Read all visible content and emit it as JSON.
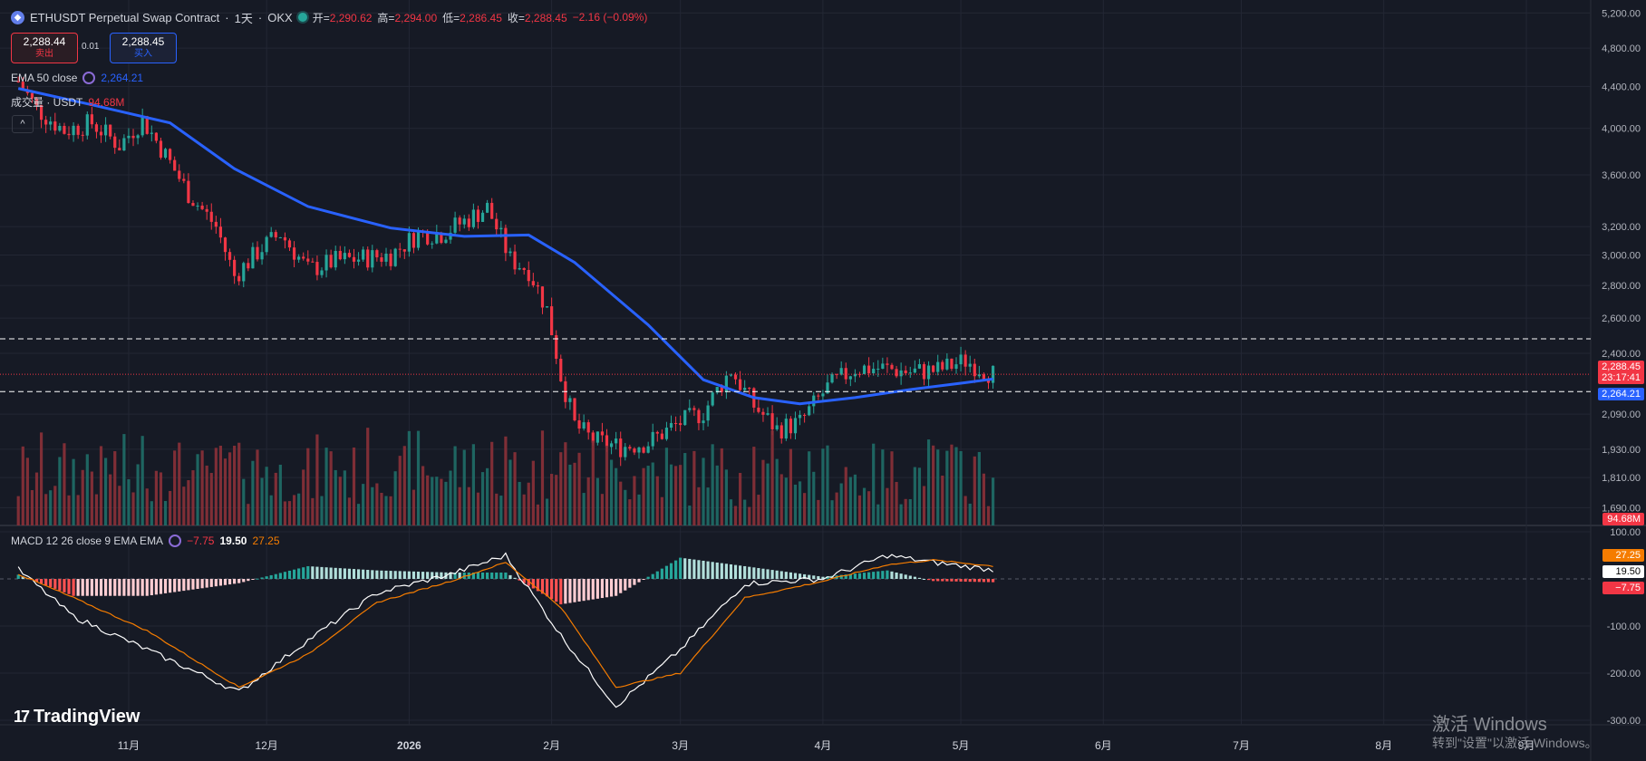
{
  "header": {
    "symbol": "ETHUSDT Perpetual Swap Contract",
    "interval": "1天",
    "exchange": "OKX",
    "open_label": "开=",
    "open": "2,290.62",
    "high_label": "高=",
    "high": "2,294.00",
    "low_label": "低=",
    "low": "2,286.45",
    "close_label": "收=",
    "close": "2,288.45",
    "change": "−2.16 (−0.09%)"
  },
  "trade": {
    "sell_price": "2,288.44",
    "sell_label": "卖出",
    "spread": "0.01",
    "buy_price": "2,288.45",
    "buy_label": "买入"
  },
  "legend": {
    "ema_label": "EMA 50 close",
    "ema_value": "2,264.21",
    "volume_label": "成交量 · USDT",
    "volume_value": "94.68M",
    "macd_label": "MACD 12 26 close 9 EMA EMA",
    "macd_hist": "−7.75",
    "macd_line": "19.50",
    "macd_signal": "27.25"
  },
  "price_tags": {
    "last": "2,288.45",
    "countdown": "23:17:41",
    "ema": "2,264.21",
    "volume": "94.68M",
    "macd_signal": "27.25",
    "macd_line": "19.50",
    "macd_hist": "−7.75"
  },
  "brand": {
    "logo": "TradingView"
  },
  "watermark": {
    "line1": "激活 Windows",
    "line2": "转到\"设置\"以激活 Windows。"
  },
  "colors": {
    "up": "#26a69a",
    "down": "#f23645",
    "ema": "#2962ff",
    "macd": "#ffffff",
    "signal": "#f57c00",
    "background": "#161a25"
  },
  "chart_data": [
    {
      "type": "candlestick",
      "title": "ETHUSDT Perpetual Swap Contract · 1天 · OKX",
      "x_ticks": [
        "11月",
        "12月",
        "2026",
        "2月",
        "3月",
        "4月",
        "5月",
        "6月",
        "7月",
        "8月",
        "9月"
      ],
      "y_ticks": [
        "5,200.00",
        "4,800.00",
        "4,400.00",
        "4,000.00",
        "3,600.00",
        "3,200.00",
        "3,000.00",
        "2,800.00",
        "2,600.00",
        "2,400.00",
        "2,090.00",
        "1,930.00",
        "1,810.00",
        "1,690.00"
      ],
      "y_scale": "log",
      "ylim": [
        1640,
        5300
      ],
      "series": [
        {
          "name": "ETHUSDT",
          "kind": "ohlc_close_path",
          "x": [
            "2025-10-08",
            "2025-10-12",
            "2025-10-18",
            "2025-10-24",
            "2025-10-30",
            "2025-11-04",
            "2025-11-10",
            "2025-11-14",
            "2025-11-20",
            "2025-11-24",
            "2025-11-30",
            "2025-12-04",
            "2025-12-10",
            "2025-12-16",
            "2025-12-22",
            "2025-12-28",
            "2026-01-03",
            "2026-01-08",
            "2026-01-13",
            "2026-01-18",
            "2026-01-23",
            "2026-01-27",
            "2026-01-31",
            "2026-02-03",
            "2026-02-06",
            "2026-02-10",
            "2026-02-16",
            "2026-02-22",
            "2026-02-28",
            "2026-03-06",
            "2026-03-12",
            "2026-03-17",
            "2026-03-22",
            "2026-03-27",
            "2026-04-02",
            "2026-04-08",
            "2026-04-14",
            "2026-04-20",
            "2026-04-26",
            "2026-05-02",
            "2026-05-08"
          ],
          "values": [
            4450,
            4180,
            3980,
            4050,
            3850,
            4080,
            3700,
            3450,
            3200,
            2860,
            3050,
            3150,
            2900,
            2960,
            2980,
            3000,
            3150,
            3150,
            3240,
            3340,
            2970,
            2900,
            2650,
            2280,
            2040,
            1970,
            1940,
            1960,
            2040,
            2100,
            2310,
            2130,
            2020,
            2050,
            2220,
            2320,
            2320,
            2300,
            2310,
            2360,
            2288.45
          ]
        },
        {
          "name": "EMA 50 close",
          "kind": "line",
          "x": [
            "2025-10-08",
            "2025-10-24",
            "2025-11-10",
            "2025-11-24",
            "2025-12-10",
            "2025-12-28",
            "2026-01-13",
            "2026-01-27",
            "2026-02-06",
            "2026-02-22",
            "2026-03-06",
            "2026-03-17",
            "2026-03-27",
            "2026-04-08",
            "2026-04-20",
            "2026-05-02",
            "2026-05-08"
          ],
          "values": [
            4380,
            4220,
            4050,
            3650,
            3350,
            3190,
            3130,
            3140,
            2950,
            2560,
            2260,
            2170,
            2140,
            2170,
            2210,
            2245,
            2264.21
          ]
        }
      ],
      "horizontal_lines": [
        2480,
        2200
      ]
    },
    {
      "type": "bar",
      "title": "成交量 · USDT",
      "last_value": "94.68M"
    },
    {
      "type": "line",
      "title": "MACD 12 26 close 9 EMA EMA",
      "y_ticks": [
        "100.00",
        "-100.00",
        "-200.00",
        "-300.00"
      ],
      "ylim": [
        -300,
        100
      ],
      "series": [
        {
          "name": "MACD",
          "x": [
            "2025-10-08",
            "2025-10-20",
            "2025-11-05",
            "2025-11-25",
            "2025-12-10",
            "2025-12-25",
            "2026-01-10",
            "2026-01-22",
            "2026-02-03",
            "2026-02-15",
            "2026-03-01",
            "2026-03-15",
            "2026-04-01",
            "2026-04-15",
            "2026-04-25",
            "2026-05-08"
          ],
          "values": [
            20,
            -80,
            -150,
            -240,
            -130,
            -30,
            10,
            50,
            -120,
            -270,
            -150,
            -10,
            0,
            50,
            35,
            19.5
          ]
        },
        {
          "name": "Signal",
          "x": [
            "2025-10-08",
            "2025-10-20",
            "2025-11-05",
            "2025-11-25",
            "2025-12-10",
            "2025-12-25",
            "2026-01-10",
            "2026-01-22",
            "2026-02-03",
            "2026-02-15",
            "2026-03-01",
            "2026-03-15",
            "2026-04-01",
            "2026-04-15",
            "2026-04-25",
            "2026-05-08"
          ],
          "values": [
            10,
            -40,
            -110,
            -230,
            -160,
            -50,
            -5,
            35,
            -60,
            -230,
            -200,
            -40,
            -5,
            30,
            40,
            27.25
          ]
        },
        {
          "name": "Histogram",
          "last_value": -7.75
        }
      ]
    }
  ]
}
